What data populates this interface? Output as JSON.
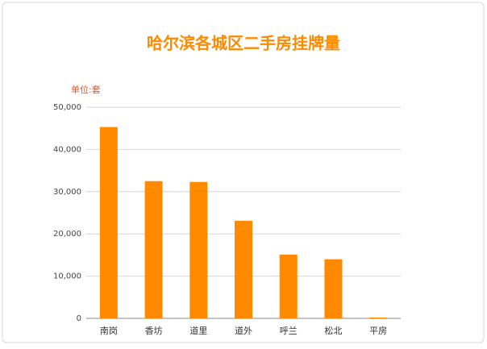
{
  "chart_data": {
    "type": "bar",
    "title": "哈尔滨各城区二手房挂牌量",
    "unit_label": "单位:套",
    "categories": [
      "南岗",
      "香坊",
      "道里",
      "道外",
      "呼兰",
      "松北",
      "平房"
    ],
    "values": [
      45300,
      32500,
      32300,
      23100,
      15100,
      14000,
      200
    ],
    "color": "#ff8a00",
    "ylim": [
      0,
      50000
    ],
    "yticks": [
      0,
      {
        "value": 10000,
        "label": "10,000"
      },
      {
        "value": 20000,
        "label": "20,000"
      },
      {
        "value": 30000,
        "label": "30,000"
      },
      {
        "value": 40000,
        "label": "40,000"
      },
      {
        "value": 50000,
        "label": "50,000"
      }
    ],
    "grid": true
  }
}
